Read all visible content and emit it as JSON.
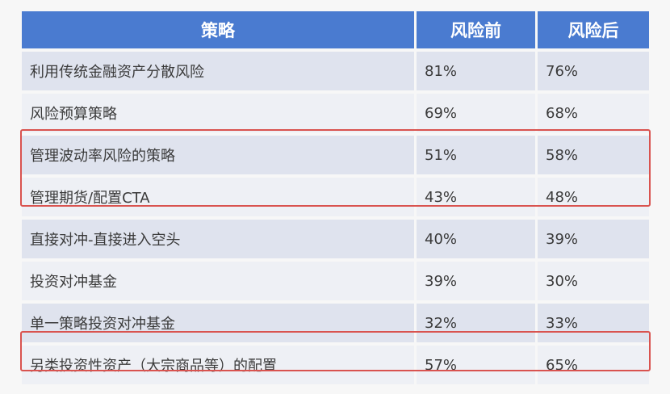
{
  "table": {
    "headers": [
      "策略",
      "风险前",
      "风险后"
    ],
    "rows": [
      {
        "strategy": "利用传统金融资产分散风险",
        "before": "81%",
        "after": "76%"
      },
      {
        "strategy": "风险预算策略",
        "before": "69%",
        "after": "68%"
      },
      {
        "strategy": "管理波动率风险的策略",
        "before": "51%",
        "after": "58%"
      },
      {
        "strategy": "管理期货/配置CTA",
        "before": "43%",
        "after": "48%"
      },
      {
        "strategy": "直接对冲-直接进入空头",
        "before": "40%",
        "after": "39%"
      },
      {
        "strategy": "投资对冲基金",
        "before": "39%",
        "after": "30%"
      },
      {
        "strategy": "单一策略投资对冲基金",
        "before": "32%",
        "after": "33%"
      },
      {
        "strategy": "另类投资性资产（大宗商品等）的配置",
        "before": "57%",
        "after": "65%"
      }
    ],
    "highlight_color": "#d9534f",
    "header_color": "#4a7bd0"
  }
}
